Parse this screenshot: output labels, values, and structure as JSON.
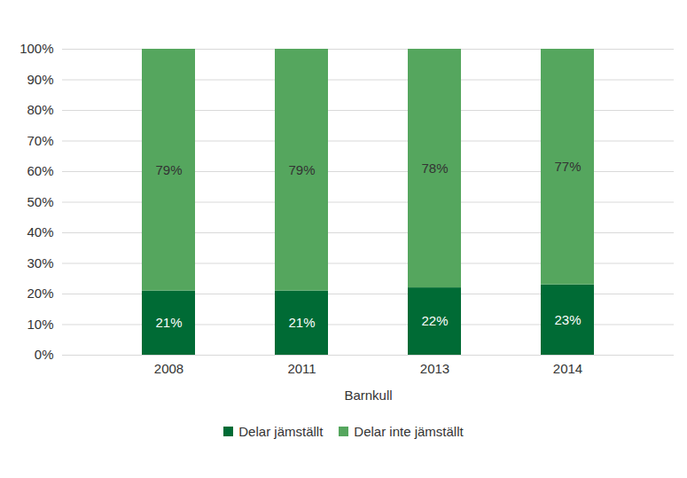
{
  "chart_data": {
    "type": "bar",
    "stacked": true,
    "data_labels": true,
    "grid": true,
    "legend": "bottom",
    "x_label": "Barnkull",
    "categories": [
      "2008",
      "2011",
      "2013",
      "2014"
    ],
    "series": [
      {
        "name": "Delar jämställt",
        "color": "#006b35",
        "values": [
          21,
          21,
          22,
          23
        ],
        "value_labels": [
          "21%",
          "21%",
          "22%",
          "23%"
        ]
      },
      {
        "name": "Delar inte jämställt",
        "color": "#55a65e",
        "values": [
          79,
          79,
          78,
          77
        ],
        "value_labels": [
          "79%",
          "79%",
          "78%",
          "77%"
        ]
      }
    ],
    "ylim": [
      0,
      100
    ],
    "yticks": [
      {
        "value": 0,
        "label": "0%"
      },
      {
        "value": 10,
        "label": "10%"
      },
      {
        "value": 20,
        "label": "20%"
      },
      {
        "value": 30,
        "label": "30%"
      },
      {
        "value": 40,
        "label": "40%"
      },
      {
        "value": 50,
        "label": "50%"
      },
      {
        "value": 60,
        "label": "60%"
      },
      {
        "value": 70,
        "label": "70%"
      },
      {
        "value": 80,
        "label": "80%"
      },
      {
        "value": 90,
        "label": "90%"
      },
      {
        "value": 100,
        "label": "100%"
      }
    ]
  }
}
